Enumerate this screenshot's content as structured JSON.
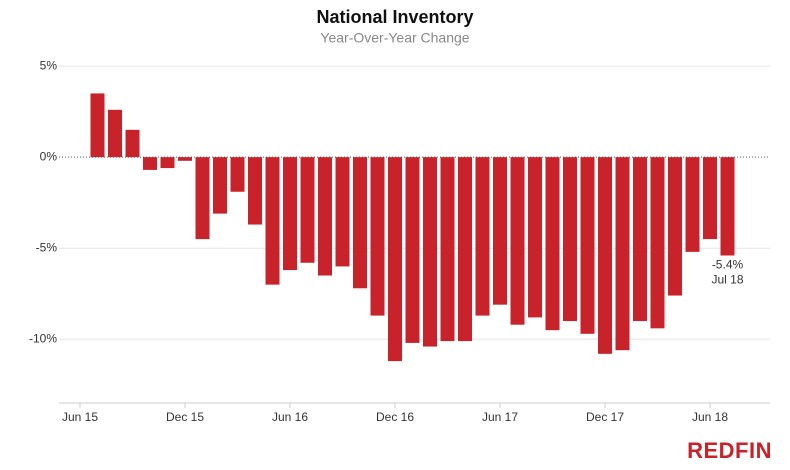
{
  "chart_data": {
    "type": "bar",
    "title": "National Inventory",
    "subtitle": "Year-Over-Year Change",
    "categories": [
      "Jun 15",
      null,
      null,
      null,
      null,
      null,
      "Dec 15",
      null,
      null,
      null,
      null,
      null,
      "Jun 16",
      null,
      null,
      null,
      null,
      null,
      "Dec 16",
      null,
      null,
      null,
      null,
      null,
      "Jun 17",
      null,
      null,
      null,
      null,
      null,
      "Dec 17",
      null,
      null,
      null,
      null,
      null,
      "Jun 18",
      null
    ],
    "values": [
      null,
      3.5,
      2.6,
      1.5,
      -0.7,
      -0.6,
      -0.2,
      -4.5,
      -3.1,
      -1.9,
      -3.7,
      -7.0,
      -6.2,
      -5.8,
      -6.5,
      -6.0,
      -7.2,
      -8.7,
      -11.2,
      -10.2,
      -10.4,
      -10.1,
      -10.1,
      -8.7,
      -8.1,
      -9.2,
      -8.8,
      -9.5,
      -9.0,
      -9.7,
      -10.8,
      -10.6,
      -9.0,
      -9.4,
      -7.6,
      -5.2,
      -4.5,
      -5.4
    ],
    "value_labels": [
      null,
      null,
      null,
      null,
      null,
      null,
      null,
      null,
      null,
      null,
      null,
      null,
      null,
      null,
      null,
      null,
      null,
      null,
      null,
      null,
      null,
      null,
      null,
      null,
      null,
      null,
      null,
      null,
      null,
      null,
      null,
      null,
      null,
      null,
      null,
      null,
      null,
      "-5.4%"
    ],
    "annotation": "Jul 18",
    "color": "#c8222a",
    "ylim": [
      -13.5,
      5.5
    ],
    "yticks": [
      {
        "value": 5,
        "label": "5%"
      },
      {
        "value": 0,
        "label": "0%"
      },
      {
        "value": -5,
        "label": "-5%"
      },
      {
        "value": -10,
        "label": "-10%"
      }
    ],
    "grid": true,
    "logo": "REDFIN"
  }
}
